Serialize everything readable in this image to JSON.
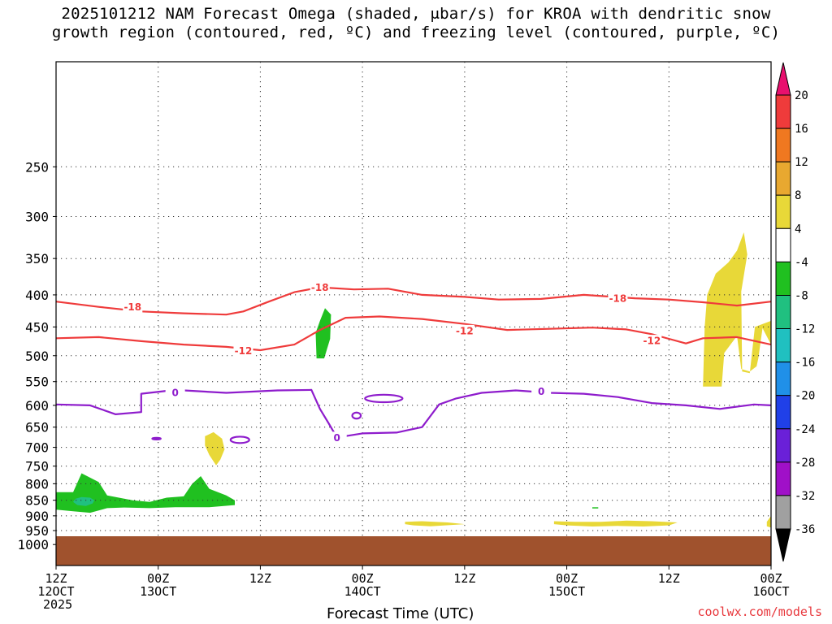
{
  "chart_data": {
    "type": "contour",
    "title_line1": "2025101212 NAM Forecast Omega (shaded, μbar/s) for KROA with dendritic snow",
    "title_line2": "growth region (contoured, red, ºC) and freezing level (contoured, purple, ºC)",
    "xlabel": "Forecast Time (UTC)",
    "credit": "coolwx.com/models",
    "y_axis": {
      "quantity": "pressure (hPa)",
      "ticks": [
        250,
        300,
        350,
        400,
        450,
        500,
        550,
        600,
        650,
        700,
        750,
        800,
        850,
        900,
        950,
        1000
      ]
    },
    "x_axis": {
      "start_hour": 0,
      "end_hour": 84,
      "ticks": [
        {
          "hour": 0,
          "label1": "12Z",
          "label2": "12OCT",
          "label3": "2025"
        },
        {
          "hour": 12,
          "label1": "00Z",
          "label2": "13OCT",
          "label3": ""
        },
        {
          "hour": 24,
          "label1": "12Z",
          "label2": "",
          "label3": ""
        },
        {
          "hour": 36,
          "label1": "00Z",
          "label2": "14OCT",
          "label3": ""
        },
        {
          "hour": 48,
          "label1": "12Z",
          "label2": "",
          "label3": ""
        },
        {
          "hour": 60,
          "label1": "00Z",
          "label2": "15OCT",
          "label3": ""
        },
        {
          "hour": 72,
          "label1": "12Z",
          "label2": "",
          "label3": ""
        },
        {
          "hour": 84,
          "label1": "00Z",
          "label2": "16OCT",
          "label3": ""
        }
      ]
    },
    "colorbar": {
      "labels": [
        "20",
        "16",
        "12",
        "8",
        "4",
        "-4",
        "-8",
        "-12",
        "-16",
        "-20",
        "-24",
        "-28",
        "-32",
        "-36"
      ],
      "colors": [
        "#e8106e",
        "#ef3b3b",
        "#f07820",
        "#e8a830",
        "#e8d838",
        "#ffffff",
        "#20c020",
        "#20c080",
        "#20c0c0",
        "#2090e8",
        "#2040e8",
        "#6a20d8",
        "#a010c8",
        "#a0a0a0",
        "#000000"
      ],
      "top_triangle_color": "#e8106e",
      "bottom_triangle_color": "#000000"
    },
    "ground_color": "#a0522d",
    "contours": [
      {
        "name": "minus-18-isotherm",
        "label": "-18",
        "color": "#ef3b3b",
        "points": [
          [
            0,
            410
          ],
          [
            5,
            418
          ],
          [
            10,
            425
          ],
          [
            15,
            428
          ],
          [
            20,
            430
          ],
          [
            22,
            425
          ],
          [
            25,
            410
          ],
          [
            28,
            396
          ],
          [
            31,
            389
          ],
          [
            35,
            392
          ],
          [
            39,
            391
          ],
          [
            43,
            400
          ],
          [
            48,
            403
          ],
          [
            52,
            407
          ],
          [
            57,
            406
          ],
          [
            62,
            400
          ],
          [
            68,
            405
          ],
          [
            72,
            407
          ],
          [
            76,
            411
          ],
          [
            80,
            416
          ],
          [
            84,
            410
          ]
        ],
        "label_points": [
          [
            9,
            418
          ],
          [
            31,
            389
          ],
          [
            66,
            405
          ]
        ]
      },
      {
        "name": "minus-12-isotherm",
        "label": "-12",
        "color": "#ef3b3b",
        "points": [
          [
            0,
            469
          ],
          [
            5,
            467
          ],
          [
            10,
            474
          ],
          [
            15,
            480
          ],
          [
            20,
            484
          ],
          [
            24,
            490
          ],
          [
            28,
            480
          ],
          [
            31,
            455
          ],
          [
            34,
            435
          ],
          [
            38,
            433
          ],
          [
            43,
            437
          ],
          [
            48,
            445
          ],
          [
            53,
            455
          ],
          [
            58,
            453
          ],
          [
            63,
            451
          ],
          [
            67,
            454
          ],
          [
            70,
            462
          ],
          [
            72,
            470
          ],
          [
            74,
            478
          ],
          [
            76,
            469
          ],
          [
            80,
            467
          ],
          [
            84,
            480
          ]
        ],
        "label_points": [
          [
            22,
            491
          ],
          [
            48,
            456
          ],
          [
            70,
            473
          ]
        ]
      },
      {
        "name": "freezing-level-0c",
        "label": "0",
        "color": "#8e1ccc",
        "points": [
          [
            0,
            598
          ],
          [
            4,
            600
          ],
          [
            7,
            620
          ],
          [
            10,
            615
          ],
          [
            10,
            575
          ],
          [
            14,
            567
          ],
          [
            20,
            573
          ],
          [
            26,
            568
          ],
          [
            30,
            567
          ],
          [
            31,
            608
          ],
          [
            32,
            640
          ],
          [
            33,
            675
          ],
          [
            36,
            665
          ],
          [
            40,
            663
          ],
          [
            43,
            650
          ],
          [
            45,
            598
          ],
          [
            47,
            585
          ],
          [
            50,
            573
          ],
          [
            54,
            568
          ],
          [
            58,
            573
          ],
          [
            62,
            575
          ],
          [
            66,
            582
          ],
          [
            70,
            595
          ],
          [
            74,
            600
          ],
          [
            78,
            608
          ],
          [
            82,
            598
          ],
          [
            84,
            600
          ]
        ],
        "label_points": [
          [
            14,
            572
          ],
          [
            33,
            675
          ],
          [
            57,
            570
          ]
        ]
      }
    ],
    "freezing_loops": [
      {
        "name": "freezing-loop-1",
        "center": [
          35.3,
          623
        ],
        "rx_hours": 0.5,
        "ry_hpa": 7
      },
      {
        "name": "freezing-loop-2",
        "center": [
          38.5,
          585
        ],
        "rx_hours": 2.2,
        "ry_hpa": 8
      },
      {
        "name": "freezing-loop-3",
        "center": [
          21.6,
          681
        ],
        "rx_hours": 1.1,
        "ry_hpa": 8
      },
      {
        "name": "freezing-loop-4",
        "center": [
          11.8,
          678
        ],
        "rx_hours": 0.5,
        "ry_hpa": 2
      }
    ],
    "omega_areas": [
      {
        "name": "omega-area-1",
        "value_range": "-4 to -8",
        "color": "#20c020",
        "points": [
          [
            0,
            825
          ],
          [
            2,
            825
          ],
          [
            3,
            770
          ],
          [
            5,
            795
          ],
          [
            6,
            835
          ],
          [
            9,
            850
          ],
          [
            11,
            855
          ],
          [
            13,
            842
          ],
          [
            15,
            838
          ],
          [
            16,
            800
          ],
          [
            17,
            778
          ],
          [
            18,
            815
          ],
          [
            20,
            835
          ],
          [
            21,
            850
          ],
          [
            21,
            865
          ],
          [
            18,
            872
          ],
          [
            14,
            872
          ],
          [
            11,
            875
          ],
          [
            8,
            873
          ],
          [
            6,
            875
          ],
          [
            4,
            890
          ],
          [
            2,
            885
          ],
          [
            0,
            880
          ]
        ]
      },
      {
        "name": "omega-area-2",
        "value_range": "-8 to -12",
        "color": "#20c080",
        "points": [
          [
            2.3,
            845
          ],
          [
            3,
            840
          ],
          [
            4,
            842
          ],
          [
            4.5,
            850
          ],
          [
            4.3,
            860
          ],
          [
            3.5,
            868
          ],
          [
            2.5,
            865
          ],
          [
            2.0,
            855
          ]
        ]
      },
      {
        "name": "omega-area-3",
        "value_range": "-4 to -8",
        "color": "#20c020",
        "points": [
          [
            30.6,
            505
          ],
          [
            30.5,
            460
          ],
          [
            31,
            440
          ],
          [
            31.6,
            420
          ],
          [
            32.3,
            430
          ],
          [
            32.2,
            470
          ],
          [
            31.5,
            505
          ]
        ]
      },
      {
        "name": "omega-area-4",
        "value_range": "-4 to -8",
        "color": "#20c020",
        "points": [
          [
            63,
            872
          ],
          [
            63.7,
            872
          ],
          [
            63.7,
            876
          ],
          [
            63,
            876
          ]
        ]
      },
      {
        "name": "omega-area-5",
        "value_range": "4 to 8",
        "color": "#e8d838",
        "points": [
          [
            17.5,
            672
          ],
          [
            18.5,
            662
          ],
          [
            19.5,
            678
          ],
          [
            19.8,
            705
          ],
          [
            19.3,
            732
          ],
          [
            18.8,
            748
          ],
          [
            18,
            720
          ],
          [
            17.5,
            695
          ]
        ]
      },
      {
        "name": "omega-area-6",
        "value_range": "4 to 8",
        "color": "#e8d838",
        "points": [
          [
            41,
            920
          ],
          [
            43,
            918
          ],
          [
            46,
            922
          ],
          [
            48,
            928
          ],
          [
            44,
            935
          ],
          [
            42,
            932
          ],
          [
            41,
            928
          ]
        ]
      },
      {
        "name": "omega-area-7",
        "value_range": "4 to 8",
        "color": "#e8d838",
        "points": [
          [
            58.5,
            918
          ],
          [
            61,
            920
          ],
          [
            64,
            920
          ],
          [
            67,
            916
          ],
          [
            70,
            918
          ],
          [
            73,
            922
          ],
          [
            72,
            932
          ],
          [
            69,
            936
          ],
          [
            66,
            934
          ],
          [
            63,
            936
          ],
          [
            60,
            932
          ],
          [
            58.5,
            928
          ]
        ]
      },
      {
        "name": "omega-area-8",
        "value_range": "4 to 8",
        "color": "#e8d838",
        "points": [
          [
            76,
            560
          ],
          [
            76.2,
            450
          ],
          [
            76.5,
            400
          ],
          [
            77.5,
            370
          ],
          [
            79,
            355
          ],
          [
            80,
            340
          ],
          [
            80.8,
            318
          ],
          [
            81.2,
            345
          ],
          [
            80.5,
            395
          ],
          [
            80.6,
            530
          ],
          [
            81.5,
            533
          ],
          [
            82.1,
            450
          ],
          [
            84,
            440
          ],
          [
            84,
            480
          ],
          [
            83,
            452
          ],
          [
            82.5,
            505
          ],
          [
            82.3,
            520
          ],
          [
            81.5,
            530
          ],
          [
            80.5,
            525
          ],
          [
            80,
            465
          ],
          [
            78.5,
            495
          ],
          [
            78.2,
            560
          ]
        ]
      },
      {
        "name": "omega-area-9",
        "value_range": "4 to 8",
        "color": "#e8d838",
        "points": [
          [
            83.5,
            920
          ],
          [
            84,
            900
          ],
          [
            84,
            940
          ],
          [
            83.5,
            935
          ]
        ]
      }
    ]
  }
}
